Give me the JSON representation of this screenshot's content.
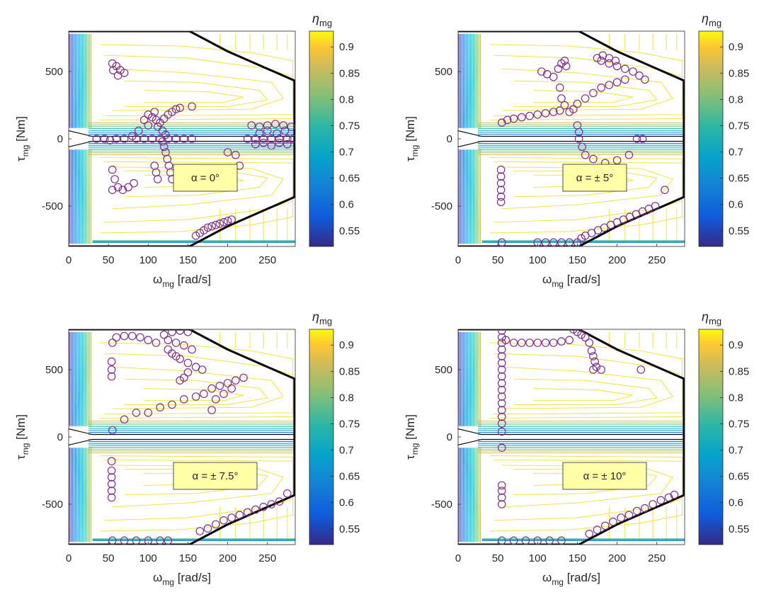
{
  "chart_data": [
    {
      "type": "scatter",
      "background": "contour",
      "annotation": "α = 0°",
      "xlabel_sym": "ω",
      "xlabel_sub": "mg",
      "xlabel_unit": " [rad/s]",
      "ylabel_sym": "τ",
      "ylabel_sub": "mg",
      "ylabel_unit": " [Nm]",
      "xlim": [
        0,
        285
      ],
      "ylim": [
        -800,
        800
      ],
      "xticks": [
        "0",
        "50",
        "100",
        "150",
        "200",
        "250"
      ],
      "yticks": [
        "-500",
        "0",
        "500"
      ],
      "colorbar": {
        "label_sym": "η",
        "label_sub": "mg",
        "range": [
          0.52,
          0.93
        ],
        "ticks": [
          "0.55",
          "0.6",
          "0.65",
          "0.7",
          "0.75",
          "0.8",
          "0.85",
          "0.9"
        ]
      },
      "marker_color": "#7E2F8E",
      "points": [
        [
          55,
          560
        ],
        [
          60,
          540
        ],
        [
          65,
          510
        ],
        [
          70,
          490
        ],
        [
          56,
          510
        ],
        [
          62,
          470
        ],
        [
          100,
          180
        ],
        [
          105,
          160
        ],
        [
          110,
          140
        ],
        [
          115,
          120
        ],
        [
          120,
          150
        ],
        [
          125,
          180
        ],
        [
          130,
          200
        ],
        [
          135,
          220
        ],
        [
          140,
          230
        ],
        [
          108,
          200
        ],
        [
          112,
          90
        ],
        [
          118,
          60
        ],
        [
          122,
          30
        ],
        [
          95,
          140
        ],
        [
          100,
          100
        ],
        [
          88,
          60
        ],
        [
          80,
          20
        ],
        [
          70,
          0
        ],
        [
          60,
          0
        ],
        [
          52,
          -10
        ],
        [
          35,
          0
        ],
        [
          45,
          0
        ],
        [
          85,
          0
        ],
        [
          95,
          0
        ],
        [
          105,
          0
        ],
        [
          115,
          0
        ],
        [
          125,
          0
        ],
        [
          135,
          0
        ],
        [
          145,
          0
        ],
        [
          155,
          0
        ],
        [
          118,
          -20
        ],
        [
          120,
          -60
        ],
        [
          122,
          -100
        ],
        [
          124,
          -150
        ],
        [
          126,
          -200
        ],
        [
          128,
          -250
        ],
        [
          130,
          -300
        ],
        [
          108,
          -200
        ],
        [
          110,
          -250
        ],
        [
          112,
          -300
        ],
        [
          155,
          240
        ],
        [
          160,
          -720
        ],
        [
          165,
          -700
        ],
        [
          170,
          -680
        ],
        [
          175,
          -660
        ],
        [
          180,
          -650
        ],
        [
          185,
          -640
        ],
        [
          190,
          -630
        ],
        [
          195,
          -620
        ],
        [
          200,
          -610
        ],
        [
          205,
          -600
        ],
        [
          200,
          -100
        ],
        [
          210,
          -120
        ],
        [
          215,
          -200
        ],
        [
          225,
          0
        ],
        [
          235,
          0
        ],
        [
          245,
          0
        ],
        [
          255,
          0
        ],
        [
          265,
          0
        ],
        [
          275,
          0
        ],
        [
          282,
          0
        ],
        [
          230,
          100
        ],
        [
          240,
          90
        ],
        [
          250,
          100
        ],
        [
          260,
          110
        ],
        [
          270,
          100
        ],
        [
          280,
          90
        ],
        [
          235,
          -40
        ],
        [
          245,
          -30
        ],
        [
          255,
          -50
        ],
        [
          265,
          -30
        ],
        [
          275,
          -40
        ],
        [
          240,
          40
        ],
        [
          250,
          60
        ],
        [
          262,
          40
        ],
        [
          272,
          60
        ],
        [
          55,
          -230
        ],
        [
          58,
          -300
        ],
        [
          62,
          -360
        ],
        [
          68,
          -380
        ],
        [
          75,
          -360
        ],
        [
          82,
          -330
        ],
        [
          55,
          -380
        ]
      ]
    },
    {
      "type": "scatter",
      "background": "contour",
      "annotation": "α = ± 5°",
      "xlabel_sym": "ω",
      "xlabel_sub": "mg",
      "xlabel_unit": " [rad/s]",
      "ylabel_sym": "τ",
      "ylabel_sub": "mg",
      "ylabel_unit": " [Nm]",
      "xlim": [
        0,
        285
      ],
      "ylim": [
        -800,
        800
      ],
      "xticks": [
        "0",
        "50",
        "100",
        "150",
        "200",
        "250"
      ],
      "yticks": [
        "-500",
        "0",
        "500"
      ],
      "colorbar": {
        "label_sym": "η",
        "label_sub": "mg",
        "range": [
          0.52,
          0.93
        ],
        "ticks": [
          "0.55",
          "0.6",
          "0.65",
          "0.7",
          "0.75",
          "0.8",
          "0.85",
          "0.9"
        ]
      },
      "marker_color": "#7E2F8E",
      "points": [
        [
          55,
          120
        ],
        [
          62,
          140
        ],
        [
          70,
          150
        ],
        [
          80,
          160
        ],
        [
          90,
          170
        ],
        [
          100,
          180
        ],
        [
          110,
          190
        ],
        [
          120,
          200
        ],
        [
          128,
          210
        ],
        [
          105,
          500
        ],
        [
          112,
          480
        ],
        [
          120,
          460
        ],
        [
          126,
          520
        ],
        [
          130,
          560
        ],
        [
          134,
          580
        ],
        [
          136,
          540
        ],
        [
          128,
          380
        ],
        [
          130,
          300
        ],
        [
          134,
          250
        ],
        [
          140,
          200
        ],
        [
          145,
          220
        ],
        [
          150,
          260
        ],
        [
          160,
          300
        ],
        [
          170,
          340
        ],
        [
          180,
          380
        ],
        [
          190,
          400
        ],
        [
          200,
          420
        ],
        [
          210,
          440
        ],
        [
          175,
          600
        ],
        [
          180,
          580
        ],
        [
          190,
          560
        ],
        [
          200,
          540
        ],
        [
          210,
          520
        ],
        [
          220,
          500
        ],
        [
          228,
          470
        ],
        [
          235,
          440
        ],
        [
          182,
          620
        ],
        [
          190,
          600
        ],
        [
          198,
          580
        ],
        [
          152,
          0
        ],
        [
          152,
          50
        ],
        [
          150,
          100
        ],
        [
          156,
          -60
        ],
        [
          160,
          -120
        ],
        [
          170,
          -150
        ],
        [
          185,
          -180
        ],
        [
          200,
          -160
        ],
        [
          215,
          -120
        ],
        [
          225,
          0
        ],
        [
          232,
          0
        ],
        [
          54,
          -230
        ],
        [
          54,
          -280
        ],
        [
          54,
          -330
        ],
        [
          54,
          -380
        ],
        [
          54,
          -430
        ],
        [
          54,
          -470
        ],
        [
          55,
          -770
        ],
        [
          100,
          -770
        ],
        [
          110,
          -770
        ],
        [
          120,
          -770
        ],
        [
          130,
          -770
        ],
        [
          140,
          -770
        ],
        [
          150,
          -770
        ],
        [
          155,
          -740
        ],
        [
          160,
          -720
        ],
        [
          168,
          -700
        ],
        [
          176,
          -680
        ],
        [
          184,
          -660
        ],
        [
          192,
          -640
        ],
        [
          200,
          -620
        ],
        [
          208,
          -600
        ],
        [
          216,
          -580
        ],
        [
          224,
          -560
        ],
        [
          232,
          -540
        ],
        [
          240,
          -520
        ],
        [
          248,
          -500
        ],
        [
          260,
          -380
        ]
      ]
    },
    {
      "type": "scatter",
      "background": "contour",
      "annotation": "α = ± 7.5°",
      "xlabel_sym": "ω",
      "xlabel_sub": "mg",
      "xlabel_unit": " [rad/s]",
      "ylabel_sym": "τ",
      "ylabel_sub": "mg",
      "ylabel_unit": " [Nm]",
      "xlim": [
        0,
        285
      ],
      "ylim": [
        -800,
        800
      ],
      "xticks": [
        "0",
        "50",
        "100",
        "150",
        "200",
        "250"
      ],
      "yticks": [
        "-500",
        "0",
        "500"
      ],
      "colorbar": {
        "label_sym": "η",
        "label_sub": "mg",
        "range": [
          0.52,
          0.93
        ],
        "ticks": [
          "0.55",
          "0.6",
          "0.65",
          "0.7",
          "0.75",
          "0.8",
          "0.85",
          "0.9"
        ]
      },
      "marker_color": "#7E2F8E",
      "points": [
        [
          55,
          700
        ],
        [
          60,
          740
        ],
        [
          70,
          750
        ],
        [
          80,
          750
        ],
        [
          90,
          740
        ],
        [
          100,
          720
        ],
        [
          110,
          700
        ],
        [
          120,
          760
        ],
        [
          130,
          780
        ],
        [
          140,
          790
        ],
        [
          150,
          780
        ],
        [
          125,
          720
        ],
        [
          135,
          700
        ],
        [
          145,
          680
        ],
        [
          155,
          650
        ],
        [
          125,
          650
        ],
        [
          130,
          620
        ],
        [
          135,
          600
        ],
        [
          140,
          580
        ],
        [
          150,
          550
        ],
        [
          160,
          520
        ],
        [
          168,
          500
        ],
        [
          150,
          480
        ],
        [
          145,
          440
        ],
        [
          140,
          420
        ],
        [
          54,
          560
        ],
        [
          54,
          500
        ],
        [
          54,
          450
        ],
        [
          55,
          50
        ],
        [
          54,
          -180
        ],
        [
          54,
          -250
        ],
        [
          54,
          -300
        ],
        [
          54,
          -350
        ],
        [
          54,
          -400
        ],
        [
          54,
          -450
        ],
        [
          70,
          130
        ],
        [
          85,
          180
        ],
        [
          100,
          180
        ],
        [
          115,
          220
        ],
        [
          130,
          240
        ],
        [
          145,
          280
        ],
        [
          160,
          300
        ],
        [
          170,
          320
        ],
        [
          180,
          360
        ],
        [
          190,
          380
        ],
        [
          200,
          400
        ],
        [
          210,
          420
        ],
        [
          220,
          440
        ],
        [
          180,
          200
        ],
        [
          185,
          280
        ],
        [
          195,
          320
        ],
        [
          205,
          360
        ],
        [
          55,
          -770
        ],
        [
          70,
          -770
        ],
        [
          85,
          -770
        ],
        [
          100,
          -770
        ],
        [
          115,
          -770
        ],
        [
          125,
          -770
        ],
        [
          165,
          -700
        ],
        [
          175,
          -680
        ],
        [
          185,
          -650
        ],
        [
          195,
          -620
        ],
        [
          205,
          -600
        ],
        [
          215,
          -580
        ],
        [
          225,
          -560
        ],
        [
          235,
          -540
        ],
        [
          245,
          -520
        ],
        [
          255,
          -500
        ],
        [
          265,
          -480
        ],
        [
          275,
          -420
        ]
      ]
    },
    {
      "type": "scatter",
      "background": "contour",
      "annotation": "α = ± 10°",
      "xlabel_sym": "ω",
      "xlabel_sub": "mg",
      "xlabel_unit": " [rad/s]",
      "ylabel_sym": "τ",
      "ylabel_sub": "mg",
      "ylabel_unit": " [Nm]",
      "xlim": [
        0,
        285
      ],
      "ylim": [
        -800,
        800
      ],
      "xticks": [
        "0",
        "50",
        "100",
        "150",
        "200",
        "250"
      ],
      "yticks": [
        "-500",
        "0",
        "500"
      ],
      "colorbar": {
        "label_sym": "η",
        "label_sub": "mg",
        "range": [
          0.52,
          0.93
        ],
        "ticks": [
          "0.55",
          "0.6",
          "0.65",
          "0.7",
          "0.75",
          "0.8",
          "0.85",
          "0.9"
        ]
      },
      "marker_color": "#7E2F8E",
      "points": [
        [
          55,
          790
        ],
        [
          55,
          740
        ],
        [
          55,
          700
        ],
        [
          55,
          650
        ],
        [
          55,
          600
        ],
        [
          55,
          550
        ],
        [
          55,
          500
        ],
        [
          55,
          450
        ],
        [
          55,
          400
        ],
        [
          55,
          350
        ],
        [
          55,
          300
        ],
        [
          55,
          250
        ],
        [
          55,
          200
        ],
        [
          55,
          150
        ],
        [
          55,
          100
        ],
        [
          55,
          40
        ],
        [
          55,
          -80
        ],
        [
          55,
          -360
        ],
        [
          55,
          -400
        ],
        [
          55,
          -450
        ],
        [
          55,
          -500
        ],
        [
          60,
          720
        ],
        [
          70,
          700
        ],
        [
          80,
          700
        ],
        [
          90,
          700
        ],
        [
          100,
          700
        ],
        [
          110,
          700
        ],
        [
          120,
          700
        ],
        [
          130,
          710
        ],
        [
          140,
          720
        ],
        [
          145,
          800
        ],
        [
          150,
          780
        ],
        [
          155,
          760
        ],
        [
          160,
          740
        ],
        [
          165,
          700
        ],
        [
          168,
          640
        ],
        [
          170,
          600
        ],
        [
          172,
          560
        ],
        [
          174,
          520
        ],
        [
          180,
          500
        ],
        [
          170,
          500
        ],
        [
          230,
          500
        ],
        [
          55,
          -770
        ],
        [
          70,
          -770
        ],
        [
          85,
          -770
        ],
        [
          100,
          -770
        ],
        [
          115,
          -770
        ],
        [
          130,
          -770
        ],
        [
          165,
          -720
        ],
        [
          175,
          -690
        ],
        [
          185,
          -660
        ],
        [
          195,
          -630
        ],
        [
          205,
          -600
        ],
        [
          215,
          -580
        ],
        [
          225,
          -550
        ],
        [
          235,
          -530
        ],
        [
          245,
          -500
        ],
        [
          255,
          -470
        ],
        [
          265,
          -450
        ],
        [
          272,
          -430
        ]
      ]
    }
  ]
}
